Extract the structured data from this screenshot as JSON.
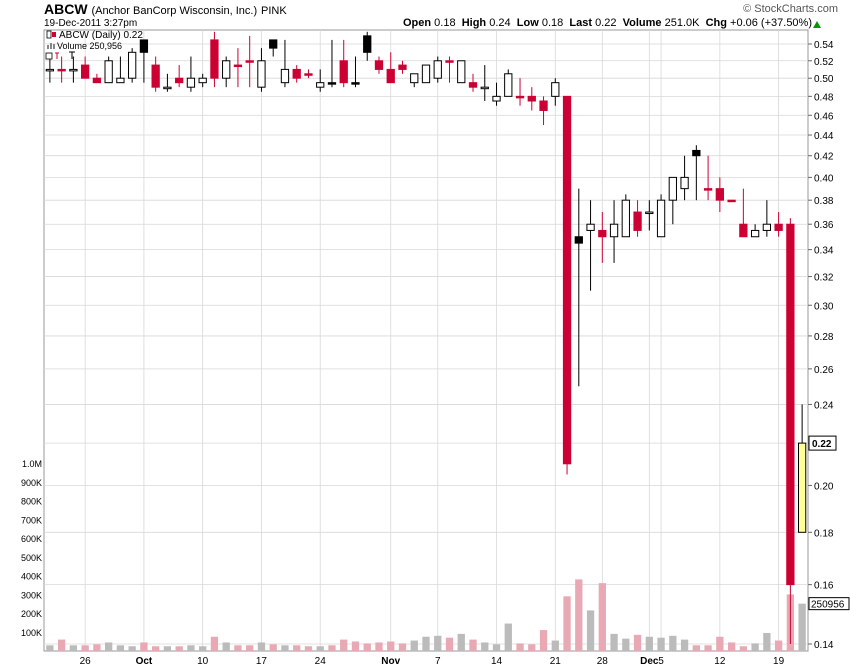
{
  "header": {
    "symbol": "ABCW",
    "company": "(Anchor BanCorp Wisconsin, Inc.)",
    "exchange": "PINK",
    "datetime": "19-Dec-2011 3:27pm",
    "watermark": "© StockCharts.com",
    "quote": {
      "open_label": "Open",
      "open": "0.18",
      "high_label": "High",
      "high": "0.24",
      "low_label": "Low",
      "low": "0.18",
      "last_label": "Last",
      "last": "0.22",
      "volume_label": "Volume",
      "volume": "251.0K",
      "chg_label": "Chg",
      "chg": "+0.06 (+37.50%)"
    }
  },
  "legend": {
    "price": "ABCW (Daily) 0.22",
    "volume": "Volume 250,956"
  },
  "colors": {
    "up": "#ffffff",
    "up_outline": "#000000",
    "down_red": "#cc0033",
    "down_black": "#000000",
    "last_candle": "#ffff99",
    "last_candle_outline": "#000000",
    "vol_up": "#bbbbbb",
    "vol_down": "#e8a8b4",
    "grid": "#d8d8d8"
  },
  "chart_data": {
    "type": "candlestick",
    "price_axis_ticks": [
      "0.54",
      "0.52",
      "0.50",
      "0.48",
      "0.46",
      "0.44",
      "0.42",
      "0.40",
      "0.38",
      "0.36",
      "0.34",
      "0.32",
      "0.30",
      "0.28",
      "0.26",
      "0.24",
      "0.22",
      "0.20",
      "0.18",
      "0.16",
      "0.14"
    ],
    "price_scale": "log",
    "ylim": [
      0.135,
      0.555
    ],
    "last_price_label": "0.22",
    "volume_axis_ticks": [
      "1.0M",
      "900K",
      "800K",
      "700K",
      "600K",
      "500K",
      "400K",
      "300K",
      "200K",
      "100K"
    ],
    "volume_last_label": "250956",
    "x_tick_labels": [
      {
        "label": "26",
        "index": 3
      },
      {
        "label": "Oct",
        "index": 8
      },
      {
        "label": "10",
        "index": 13
      },
      {
        "label": "17",
        "index": 18
      },
      {
        "label": "24",
        "index": 23
      },
      {
        "label": "Nov",
        "index": 29
      },
      {
        "label": "7",
        "index": 33
      },
      {
        "label": "14",
        "index": 38
      },
      {
        "label": "21",
        "index": 43
      },
      {
        "label": "28",
        "index": 47
      },
      {
        "label": "Dec",
        "index": 51
      },
      {
        "label": "5",
        "index": 52
      },
      {
        "label": "12",
        "index": 57
      },
      {
        "label": "19",
        "index": 62
      }
    ],
    "candles": [
      {
        "o": 0.51,
        "h": 0.525,
        "l": 0.495,
        "c": 0.51,
        "v": 30000,
        "color": "up"
      },
      {
        "o": 0.51,
        "h": 0.525,
        "l": 0.495,
        "c": 0.51,
        "v": 60000,
        "color": "down"
      },
      {
        "o": 0.51,
        "h": 0.525,
        "l": 0.495,
        "c": 0.51,
        "v": 30000,
        "color": "up"
      },
      {
        "o": 0.515,
        "h": 0.525,
        "l": 0.5,
        "c": 0.5,
        "v": 30000,
        "color": "down"
      },
      {
        "o": 0.5,
        "h": 0.505,
        "l": 0.495,
        "c": 0.495,
        "v": 35000,
        "color": "down"
      },
      {
        "o": 0.495,
        "h": 0.525,
        "l": 0.495,
        "c": 0.52,
        "v": 45000,
        "color": "up"
      },
      {
        "o": 0.495,
        "h": 0.525,
        "l": 0.495,
        "c": 0.5,
        "v": 30000,
        "color": "up"
      },
      {
        "o": 0.5,
        "h": 0.535,
        "l": 0.495,
        "c": 0.53,
        "v": 25000,
        "color": "up"
      },
      {
        "o": 0.53,
        "h": 0.545,
        "l": 0.495,
        "c": 0.545,
        "v": 45000,
        "color": "black"
      },
      {
        "o": 0.515,
        "h": 0.525,
        "l": 0.485,
        "c": 0.49,
        "v": 25000,
        "color": "down"
      },
      {
        "o": 0.49,
        "h": 0.505,
        "l": 0.485,
        "c": 0.49,
        "v": 25000,
        "color": "up"
      },
      {
        "o": 0.5,
        "h": 0.515,
        "l": 0.49,
        "c": 0.495,
        "v": 25000,
        "color": "down"
      },
      {
        "o": 0.49,
        "h": 0.525,
        "l": 0.485,
        "c": 0.5,
        "v": 30000,
        "color": "up"
      },
      {
        "o": 0.495,
        "h": 0.505,
        "l": 0.49,
        "c": 0.5,
        "v": 25000,
        "color": "up"
      },
      {
        "o": 0.545,
        "h": 0.555,
        "l": 0.49,
        "c": 0.5,
        "v": 75000,
        "color": "down"
      },
      {
        "o": 0.5,
        "h": 0.525,
        "l": 0.49,
        "c": 0.52,
        "v": 45000,
        "color": "up"
      },
      {
        "o": 0.515,
        "h": 0.535,
        "l": 0.49,
        "c": 0.515,
        "v": 30000,
        "color": "down"
      },
      {
        "o": 0.52,
        "h": 0.55,
        "l": 0.49,
        "c": 0.52,
        "v": 30000,
        "color": "down"
      },
      {
        "o": 0.49,
        "h": 0.535,
        "l": 0.485,
        "c": 0.52,
        "v": 45000,
        "color": "up"
      },
      {
        "o": 0.535,
        "h": 0.545,
        "l": 0.525,
        "c": 0.545,
        "v": 35000,
        "color": "black"
      },
      {
        "o": 0.495,
        "h": 0.545,
        "l": 0.49,
        "c": 0.51,
        "v": 30000,
        "color": "up"
      },
      {
        "o": 0.51,
        "h": 0.515,
        "l": 0.495,
        "c": 0.5,
        "v": 30000,
        "color": "down"
      },
      {
        "o": 0.505,
        "h": 0.51,
        "l": 0.5,
        "c": 0.505,
        "v": 25000,
        "color": "down"
      },
      {
        "o": 0.495,
        "h": 0.51,
        "l": 0.485,
        "c": 0.49,
        "v": 25000,
        "color": "up"
      },
      {
        "o": 0.495,
        "h": 0.545,
        "l": 0.49,
        "c": 0.495,
        "v": 30000,
        "color": "black"
      },
      {
        "o": 0.52,
        "h": 0.545,
        "l": 0.49,
        "c": 0.495,
        "v": 60000,
        "color": "down"
      },
      {
        "o": 0.495,
        "h": 0.525,
        "l": 0.49,
        "c": 0.495,
        "v": 50000,
        "color": "black"
      },
      {
        "o": 0.55,
        "h": 0.555,
        "l": 0.52,
        "c": 0.53,
        "v": 40000,
        "color": "black"
      },
      {
        "o": 0.52,
        "h": 0.525,
        "l": 0.505,
        "c": 0.51,
        "v": 45000,
        "color": "down"
      },
      {
        "o": 0.51,
        "h": 0.53,
        "l": 0.495,
        "c": 0.495,
        "v": 50000,
        "color": "down"
      },
      {
        "o": 0.515,
        "h": 0.52,
        "l": 0.505,
        "c": 0.51,
        "v": 40000,
        "color": "down"
      },
      {
        "o": 0.495,
        "h": 0.505,
        "l": 0.49,
        "c": 0.505,
        "v": 55000,
        "color": "up"
      },
      {
        "o": 0.495,
        "h": 0.515,
        "l": 0.495,
        "c": 0.515,
        "v": 75000,
        "color": "up"
      },
      {
        "o": 0.5,
        "h": 0.525,
        "l": 0.495,
        "c": 0.52,
        "v": 80000,
        "color": "up"
      },
      {
        "o": 0.52,
        "h": 0.525,
        "l": 0.495,
        "c": 0.52,
        "v": 70000,
        "color": "down"
      },
      {
        "o": 0.495,
        "h": 0.52,
        "l": 0.495,
        "c": 0.52,
        "v": 90000,
        "color": "up"
      },
      {
        "o": 0.495,
        "h": 0.505,
        "l": 0.485,
        "c": 0.49,
        "v": 60000,
        "color": "down"
      },
      {
        "o": 0.49,
        "h": 0.515,
        "l": 0.475,
        "c": 0.49,
        "v": 45000,
        "color": "up"
      },
      {
        "o": 0.475,
        "h": 0.495,
        "l": 0.47,
        "c": 0.48,
        "v": 35000,
        "color": "up"
      },
      {
        "o": 0.48,
        "h": 0.51,
        "l": 0.48,
        "c": 0.505,
        "v": 145000,
        "color": "up"
      },
      {
        "o": 0.48,
        "h": 0.5,
        "l": 0.47,
        "c": 0.48,
        "v": 40000,
        "color": "down"
      },
      {
        "o": 0.48,
        "h": 0.49,
        "l": 0.465,
        "c": 0.475,
        "v": 35000,
        "color": "down"
      },
      {
        "o": 0.475,
        "h": 0.48,
        "l": 0.45,
        "c": 0.465,
        "v": 110000,
        "color": "down"
      },
      {
        "o": 0.48,
        "h": 0.5,
        "l": 0.47,
        "c": 0.495,
        "v": 55000,
        "color": "up"
      },
      {
        "o": 0.48,
        "h": 0.48,
        "l": 0.205,
        "c": 0.21,
        "v": 290000,
        "color": "down"
      },
      {
        "o": 0.35,
        "h": 0.39,
        "l": 0.25,
        "c": 0.345,
        "v": 380000,
        "color": "black"
      },
      {
        "o": 0.355,
        "h": 0.38,
        "l": 0.31,
        "c": 0.36,
        "v": 215000,
        "color": "up"
      },
      {
        "o": 0.355,
        "h": 0.37,
        "l": 0.33,
        "c": 0.35,
        "v": 360000,
        "color": "down"
      },
      {
        "o": 0.35,
        "h": 0.38,
        "l": 0.33,
        "c": 0.36,
        "v": 90000,
        "color": "up"
      },
      {
        "o": 0.35,
        "h": 0.385,
        "l": 0.35,
        "c": 0.38,
        "v": 65000,
        "color": "up"
      },
      {
        "o": 0.37,
        "h": 0.38,
        "l": 0.35,
        "c": 0.355,
        "v": 85000,
        "color": "down"
      },
      {
        "o": 0.37,
        "h": 0.38,
        "l": 0.355,
        "c": 0.37,
        "v": 75000,
        "color": "up"
      },
      {
        "o": 0.35,
        "h": 0.385,
        "l": 0.35,
        "c": 0.38,
        "v": 70000,
        "color": "up"
      },
      {
        "o": 0.38,
        "h": 0.4,
        "l": 0.36,
        "c": 0.4,
        "v": 80000,
        "color": "up"
      },
      {
        "o": 0.39,
        "h": 0.42,
        "l": 0.38,
        "c": 0.4,
        "v": 60000,
        "color": "up"
      },
      {
        "o": 0.42,
        "h": 0.43,
        "l": 0.38,
        "c": 0.425,
        "v": 30000,
        "color": "black"
      },
      {
        "o": 0.39,
        "h": 0.42,
        "l": 0.38,
        "c": 0.39,
        "v": 30000,
        "color": "down"
      },
      {
        "o": 0.39,
        "h": 0.4,
        "l": 0.37,
        "c": 0.38,
        "v": 75000,
        "color": "down"
      },
      {
        "o": 0.38,
        "h": 0.38,
        "l": 0.38,
        "c": 0.38,
        "v": 45000,
        "color": "down"
      },
      {
        "o": 0.36,
        "h": 0.39,
        "l": 0.35,
        "c": 0.35,
        "v": 25000,
        "color": "down"
      },
      {
        "o": 0.35,
        "h": 0.36,
        "l": 0.35,
        "c": 0.355,
        "v": 40000,
        "color": "up"
      },
      {
        "o": 0.355,
        "h": 0.38,
        "l": 0.35,
        "c": 0.36,
        "v": 95000,
        "color": "up"
      },
      {
        "o": 0.36,
        "h": 0.37,
        "l": 0.35,
        "c": 0.355,
        "v": 55000,
        "color": "down"
      },
      {
        "o": 0.36,
        "h": 0.365,
        "l": 0.14,
        "c": 0.16,
        "v": 300000,
        "color": "down"
      },
      {
        "o": 0.18,
        "h": 0.24,
        "l": 0.18,
        "c": 0.22,
        "v": 250956,
        "color": "last"
      }
    ]
  }
}
